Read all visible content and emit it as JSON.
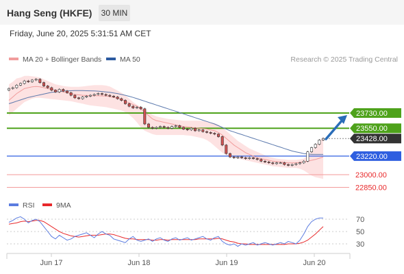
{
  "header": {
    "title": "Hang Seng (HKFE)",
    "timeframe": "30 MIN",
    "datetime": "Friday, June 20, 2025 5:31:51 AM CET"
  },
  "colors": {
    "ma20": "#f19c9c",
    "ma50": "#5b79ad",
    "bb_fill": "#fde2e2",
    "resistance": "#4ea21b",
    "support_blue": "#2f5fe0",
    "support_red": "#f39a9a",
    "price_tag": "#333333",
    "rsi": "#5b7ce0",
    "rsi_ma": "#e8282a",
    "arrow": "#2a6db8",
    "candle_up": "#ffffff",
    "candle_down": "#cf5252"
  },
  "chart_data": [
    {
      "type": "candlestick",
      "title": "Hang Seng (HKFE)",
      "timeframe": "30 MIN",
      "legend": [
        "MA 20 + Bollinger Bands",
        "MA 50"
      ],
      "legend_position": "top-left",
      "credit": "Research © 2025 Trading Central",
      "x_ticks": [
        "Jun 17",
        "Jun 18",
        "Jun 19",
        "Jun 20"
      ],
      "ylim": [
        22780,
        24200
      ],
      "close": [
        24020,
        24030,
        24060,
        24080,
        24110,
        24100,
        24120,
        24130,
        24090,
        24050,
        24030,
        24000,
        23980,
        24010,
        23990,
        23970,
        23940,
        23910,
        23900,
        23920,
        23930,
        23940,
        23950,
        23960,
        23950,
        23940,
        23930,
        23920,
        23900,
        23880,
        23840,
        23810,
        23790,
        23800,
        23780,
        23600,
        23560,
        23550,
        23560,
        23570,
        23560,
        23550,
        23570,
        23580,
        23560,
        23540,
        23530,
        23550,
        23520,
        23530,
        23510,
        23500,
        23490,
        23480,
        23450,
        23350,
        23250,
        23210,
        23200,
        23210,
        23200,
        23190,
        23200,
        23190,
        23180,
        23160,
        23150,
        23140,
        23130,
        23140,
        23140,
        23120,
        23110,
        23120,
        23130,
        23140,
        23160,
        23270,
        23320,
        23360,
        23410,
        23428
      ],
      "ma20": [
        23880,
        23920,
        23960,
        23990,
        24020,
        24030,
        24040,
        24045,
        24040,
        24030,
        24020,
        24010,
        24000,
        23990,
        23980,
        23970,
        23960,
        23950,
        23945,
        23940,
        23938,
        23935,
        23935,
        23935,
        23933,
        23930,
        23925,
        23915,
        23905,
        23890,
        23870,
        23850,
        23830,
        23810,
        23780,
        23740,
        23700,
        23660,
        23640,
        23630,
        23620,
        23610,
        23600,
        23590,
        23580,
        23570,
        23565,
        23560,
        23555,
        23550,
        23545,
        23540,
        23530,
        23520,
        23500,
        23470,
        23430,
        23390,
        23350,
        23320,
        23290,
        23260,
        23240,
        23220,
        23200,
        23190,
        23180,
        23170,
        23160,
        23155,
        23150,
        23145,
        23140,
        23140,
        23140,
        23145,
        23150,
        23160,
        23170,
        23180,
        23195,
        23210
      ],
      "bb_upper": [
        24070,
        24100,
        24140,
        24150,
        24170,
        24170,
        24165,
        24160,
        24150,
        24130,
        24110,
        24090,
        24070,
        24060,
        24050,
        24045,
        24040,
        24040,
        24040,
        24045,
        24050,
        24055,
        24060,
        24060,
        24060,
        24055,
        24045,
        24020,
        23995,
        23970,
        23940,
        23900,
        23860,
        23830,
        23800,
        23770,
        23740,
        23710,
        23690,
        23680,
        23670,
        23660,
        23655,
        23650,
        23645,
        23640,
        23640,
        23640,
        23640,
        23640,
        23635,
        23630,
        23620,
        23610,
        23590,
        23560,
        23520,
        23480,
        23440,
        23400,
        23370,
        23340,
        23310,
        23290,
        23270,
        23250,
        23230,
        23210,
        23200,
        23190,
        23185,
        23180,
        23175,
        23175,
        23175,
        23180,
        23190,
        23220,
        23280,
        23340,
        23400,
        23450
      ],
      "bb_lower": [
        23700,
        23740,
        23780,
        23820,
        23860,
        23880,
        23900,
        23910,
        23910,
        23905,
        23900,
        23895,
        23890,
        23885,
        23880,
        23875,
        23870,
        23860,
        23850,
        23840,
        23830,
        23820,
        23815,
        23810,
        23805,
        23800,
        23790,
        23780,
        23770,
        23760,
        23740,
        23710,
        23670,
        23620,
        23560,
        23520,
        23500,
        23480,
        23470,
        23470,
        23470,
        23470,
        23470,
        23470,
        23470,
        23470,
        23465,
        23460,
        23450,
        23440,
        23430,
        23410,
        23380,
        23340,
        23300,
        23260,
        23230,
        23210,
        23200,
        23190,
        23180,
        23170,
        23160,
        23150,
        23140,
        23130,
        23120,
        23110,
        23100,
        23095,
        23090,
        23085,
        23080,
        23080,
        23080,
        23070,
        23050,
        23020,
        22990,
        22970,
        22960,
        22950
      ],
      "ma50": [
        23840,
        23855,
        23870,
        23885,
        23900,
        23915,
        23925,
        23935,
        23945,
        23955,
        23965,
        23975,
        23980,
        23985,
        23990,
        23992,
        23994,
        23995,
        23995,
        23995,
        23994,
        23993,
        23991,
        23989,
        23985,
        23980,
        23975,
        23968,
        23960,
        23950,
        23940,
        23928,
        23915,
        23900,
        23885,
        23870,
        23855,
        23840,
        23825,
        23810,
        23795,
        23780,
        23765,
        23750,
        23735,
        23720,
        23705,
        23690,
        23675,
        23660,
        23645,
        23630,
        23615,
        23600,
        23580,
        23560,
        23540,
        23520,
        23505,
        23490,
        23475,
        23460,
        23445,
        23430,
        23415,
        23400,
        23385,
        23370,
        23355,
        23340,
        23325,
        23310,
        23295,
        23280,
        23270,
        23260,
        23250,
        23245,
        23240,
        23240,
        23240,
        23240
      ],
      "levels": [
        {
          "label": "23730.00",
          "value": 23730,
          "kind": "resistance"
        },
        {
          "label": "23550.00",
          "value": 23550,
          "kind": "resistance"
        },
        {
          "label": "23428.00",
          "value": 23428,
          "kind": "last_price"
        },
        {
          "label": "23220.00",
          "value": 23220,
          "kind": "pivot"
        },
        {
          "label": "23000.00",
          "value": 23000,
          "kind": "support"
        },
        {
          "label": "22850.00",
          "value": 22850,
          "kind": "support"
        }
      ],
      "arrow": {
        "direction": "up",
        "target": 23730
      }
    },
    {
      "type": "line",
      "title": "RSI",
      "legend": [
        "RSI",
        "9MA"
      ],
      "legend_position": "top-left",
      "ylim": [
        10,
        80
      ],
      "y_ticks": [
        "70",
        "50",
        "30"
      ],
      "series": [
        {
          "name": "RSI",
          "values": [
            65,
            68,
            72,
            74,
            70,
            64,
            68,
            70,
            66,
            58,
            50,
            42,
            38,
            44,
            40,
            36,
            38,
            42,
            44,
            46,
            48,
            44,
            40,
            46,
            50,
            46,
            44,
            38,
            36,
            34,
            32,
            38,
            42,
            36,
            34,
            36,
            38,
            34,
            38,
            40,
            36,
            34,
            38,
            40,
            36,
            38,
            40,
            36,
            38,
            40,
            42,
            38,
            36,
            40,
            42,
            34,
            30,
            28,
            30,
            26,
            30,
            28,
            30,
            32,
            28,
            30,
            32,
            30,
            28,
            30,
            32,
            30,
            34,
            32,
            30,
            36,
            46,
            58,
            66,
            70,
            72,
            72
          ]
        },
        {
          "name": "9MA",
          "values": [
            62,
            63,
            64,
            66,
            67,
            66,
            67,
            68,
            68,
            66,
            62,
            58,
            54,
            50,
            47,
            45,
            43,
            42,
            41,
            42,
            43,
            44,
            44,
            44,
            45,
            46,
            46,
            45,
            43,
            41,
            39,
            38,
            38,
            37,
            37,
            37,
            37,
            36,
            36,
            37,
            37,
            36,
            37,
            37,
            37,
            37,
            37,
            37,
            37,
            38,
            38,
            38,
            38,
            38,
            39,
            38,
            36,
            34,
            33,
            31,
            30,
            30,
            29,
            29,
            29,
            29,
            29,
            29,
            29,
            29,
            29,
            29,
            30,
            30,
            30,
            31,
            33,
            36,
            41,
            46,
            52,
            58
          ]
        }
      ]
    }
  ]
}
